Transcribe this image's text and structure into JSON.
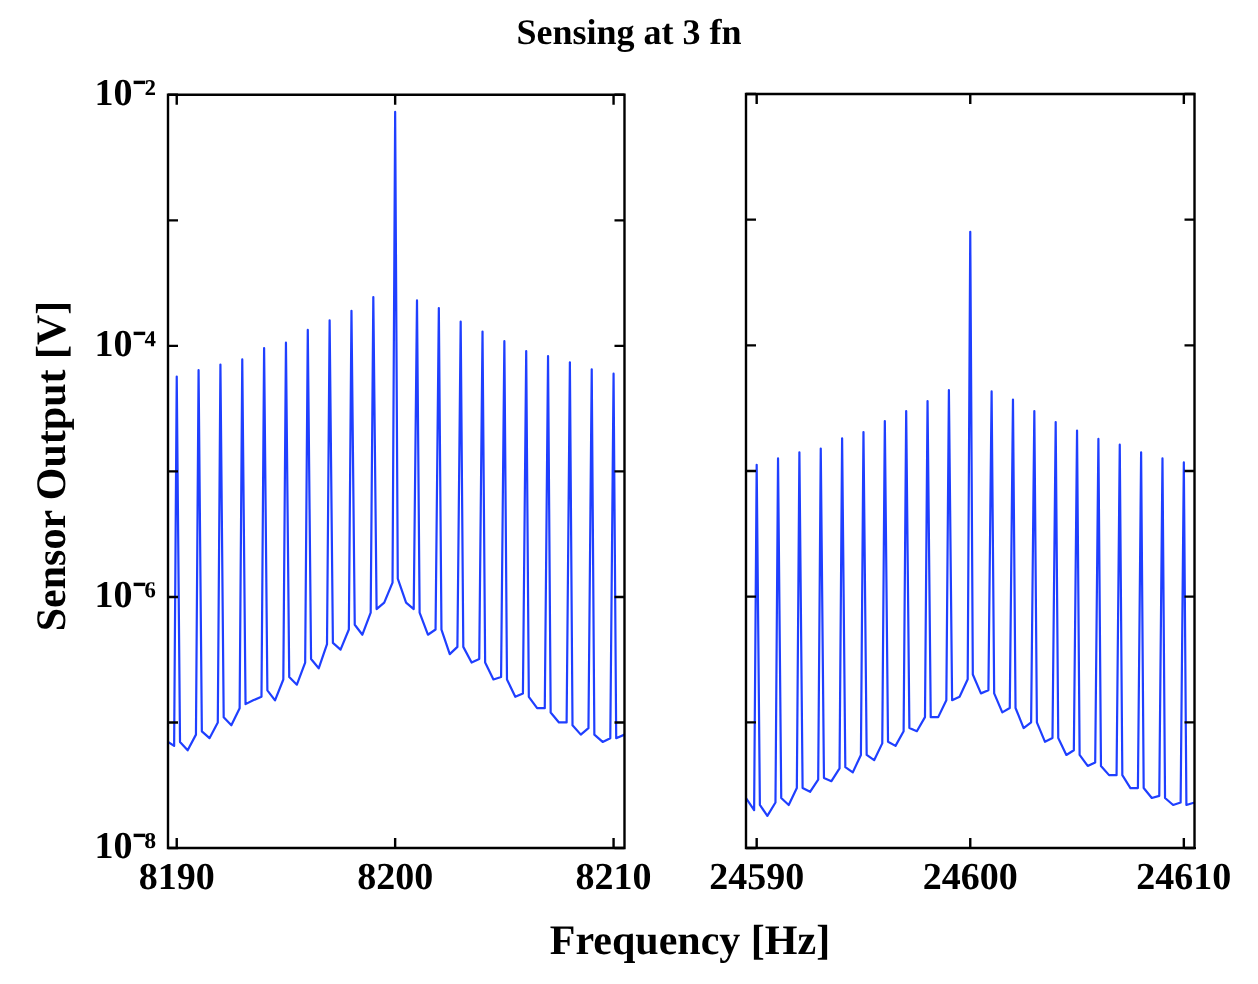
{
  "chart_data": [
    {
      "type": "line",
      "title": "Sensing at 3 fn",
      "xlabel": "Frequency [Hz]",
      "ylabel": "Sensor Output [V]",
      "log": "y",
      "xlim": [
        8189.6,
        8210.5
      ],
      "xticks": [
        8190,
        8200,
        8210
      ],
      "ylim": [
        1e-08,
        0.01
      ],
      "yticks": [
        {
          "value": 1e-08,
          "label": "10⁻⁸"
        },
        {
          "value": 1e-07,
          "label": null
        },
        {
          "value": 1e-06,
          "label": "10⁻⁶"
        },
        {
          "value": 1e-05,
          "label": null
        },
        {
          "value": 0.0001,
          "label": "10⁻⁴"
        },
        {
          "value": 0.001,
          "label": null
        },
        {
          "value": 0.01,
          "label": "10⁻²"
        }
      ],
      "series": [
        {
          "color": "#1f3fff",
          "x": [
            8189.6,
            8189.88,
            8190,
            8190.15,
            8190.5,
            8190.88,
            8191,
            8191.15,
            8191.5,
            8191.88,
            8192,
            8192.15,
            8192.5,
            8192.88,
            8193,
            8193.15,
            8193.5,
            8193.88,
            8194,
            8194.15,
            8194.5,
            8194.88,
            8195,
            8195.15,
            8195.5,
            8195.88,
            8196,
            8196.15,
            8196.5,
            8196.88,
            8197,
            8197.15,
            8197.5,
            8197.88,
            8198,
            8198.15,
            8198.5,
            8198.88,
            8199,
            8199.15,
            8199.5,
            8199.88,
            8200,
            8200.12,
            8200.5,
            8200.85,
            8201,
            8201.12,
            8201.5,
            8201.85,
            8202,
            8202.12,
            8202.5,
            8202.85,
            8203,
            8203.12,
            8203.5,
            8203.85,
            8204,
            8204.12,
            8204.5,
            8204.85,
            8205,
            8205.12,
            8205.5,
            8205.85,
            8206,
            8206.12,
            8206.5,
            8206.85,
            8207,
            8207.12,
            8207.5,
            8207.85,
            8208,
            8208.12,
            8208.5,
            8208.85,
            8209,
            8209.12,
            8209.5,
            8209.85,
            8210,
            8210.12,
            8210.5
          ],
          "values": [
            7e-08,
            6.5e-08,
            5.7e-05,
            7e-08,
            6e-08,
            8e-08,
            6.4e-05,
            8.5e-08,
            7.5e-08,
            1e-07,
            7.1e-05,
            1.1e-07,
            9.5e-08,
            1.3e-07,
            7.8e-05,
            1.4e-07,
            1.5e-07,
            1.6e-07,
            9.6e-05,
            1.8e-07,
            1.5e-07,
            2.2e-07,
            0.000106,
            2.3e-07,
            2e-07,
            3e-07,
            0.000134,
            3.2e-07,
            2.7e-07,
            4.2e-07,
            0.00016,
            4.3e-07,
            3.8e-07,
            5.5e-07,
            0.00019,
            6e-07,
            5e-07,
            7.5e-07,
            0.000245,
            8e-07,
            9e-07,
            1.3e-06,
            0.0073,
            1.4e-06,
            9e-07,
            8e-07,
            0.00023,
            7.5e-07,
            5e-07,
            5.5e-07,
            0.0002,
            5.5e-07,
            3.5e-07,
            4e-07,
            0.000156,
            4e-07,
            3e-07,
            3.2e-07,
            0.00013,
            3e-07,
            2.2e-07,
            2.3e-07,
            0.000109,
            2.2e-07,
            1.6e-07,
            1.7e-07,
            9.1e-05,
            1.6e-07,
            1.3e-07,
            1.3e-07,
            8.3e-05,
            1.2e-07,
            1e-07,
            1e-07,
            7.4e-05,
            9.5e-08,
            8e-08,
            9e-08,
            6.5e-05,
            8e-08,
            7e-08,
            7.5e-08,
            6e-05,
            7.5e-08,
            8e-08
          ]
        }
      ]
    },
    {
      "type": "line",
      "log": "y",
      "tick_labels": "x",
      "xlim": [
        24589.5,
        24610.5
      ],
      "xticks": [
        24590,
        24600,
        24610
      ],
      "ylim": [
        1e-08,
        0.01
      ],
      "yticks": [
        {
          "value": 1e-08,
          "label": null
        },
        {
          "value": 1e-07,
          "label": null
        },
        {
          "value": 1e-06,
          "label": null
        },
        {
          "value": 1e-05,
          "label": null
        },
        {
          "value": 0.0001,
          "label": null
        },
        {
          "value": 0.001,
          "label": null
        },
        {
          "value": 0.01,
          "label": null
        }
      ],
      "series": [
        {
          "color": "#1f3fff",
          "x": [
            24589.5,
            24589.88,
            24590,
            24590.15,
            24590.5,
            24590.88,
            24591,
            24591.15,
            24591.5,
            24591.88,
            24592,
            24592.15,
            24592.5,
            24592.88,
            24593,
            24593.15,
            24593.5,
            24593.88,
            24594,
            24594.15,
            24594.5,
            24594.88,
            24595,
            24595.15,
            24595.5,
            24595.88,
            24596,
            24596.15,
            24596.5,
            24596.88,
            24597,
            24597.15,
            24597.5,
            24597.88,
            24598,
            24598.15,
            24598.5,
            24598.88,
            24599,
            24599.15,
            24599.5,
            24599.88,
            24600,
            24600.12,
            24600.5,
            24600.85,
            24601,
            24601.12,
            24601.5,
            24601.85,
            24602,
            24602.12,
            24602.5,
            24602.85,
            24603,
            24603.12,
            24603.5,
            24603.85,
            24604,
            24604.12,
            24604.5,
            24604.85,
            24605,
            24605.12,
            24605.5,
            24605.85,
            24606,
            24606.12,
            24606.5,
            24606.85,
            24607,
            24607.12,
            24607.5,
            24607.85,
            24608,
            24608.12,
            24608.5,
            24608.85,
            24609,
            24609.12,
            24609.5,
            24609.85,
            24610,
            24610.12,
            24610.5
          ],
          "values": [
            2.5e-08,
            2e-08,
            1.12e-05,
            2.2e-08,
            1.8e-08,
            2.3e-08,
            1.26e-05,
            2.5e-08,
            2.2e-08,
            3e-08,
            1.41e-05,
            3e-08,
            2.8e-08,
            3.5e-08,
            1.51e-05,
            3.6e-08,
            3.4e-08,
            4.3e-08,
            1.82e-05,
            4.4e-08,
            4e-08,
            5.5e-08,
            2.04e-05,
            5.5e-08,
            5e-08,
            6.8e-08,
            2.5e-05,
            7e-08,
            6.5e-08,
            8.5e-08,
            3e-05,
            9e-08,
            8.5e-08,
            1.1e-07,
            3.6e-05,
            1.1e-07,
            1.1e-07,
            1.5e-07,
            4.4e-05,
            1.5e-07,
            1.6e-07,
            2.2e-07,
            0.0008,
            2.4e-07,
            1.7e-07,
            1.8e-07,
            4.3e-05,
            1.7e-07,
            1.2e-07,
            1.3e-07,
            3.7e-05,
            1.3e-07,
            9e-08,
            1e-07,
            3e-05,
            1e-07,
            7e-08,
            7.5e-08,
            2.45e-05,
            7.5e-08,
            5.5e-08,
            6e-08,
            2.1e-05,
            5.5e-08,
            4.5e-08,
            4.8e-08,
            1.8e-05,
            4.5e-08,
            3.8e-08,
            3.8e-08,
            1.62e-05,
            3.8e-08,
            3e-08,
            3e-08,
            1.41e-05,
            3e-08,
            2.5e-08,
            2.6e-08,
            1.26e-05,
            2.5e-08,
            2.2e-08,
            2.3e-08,
            1.17e-05,
            2.2e-08,
            2.3e-08
          ]
        }
      ]
    }
  ]
}
